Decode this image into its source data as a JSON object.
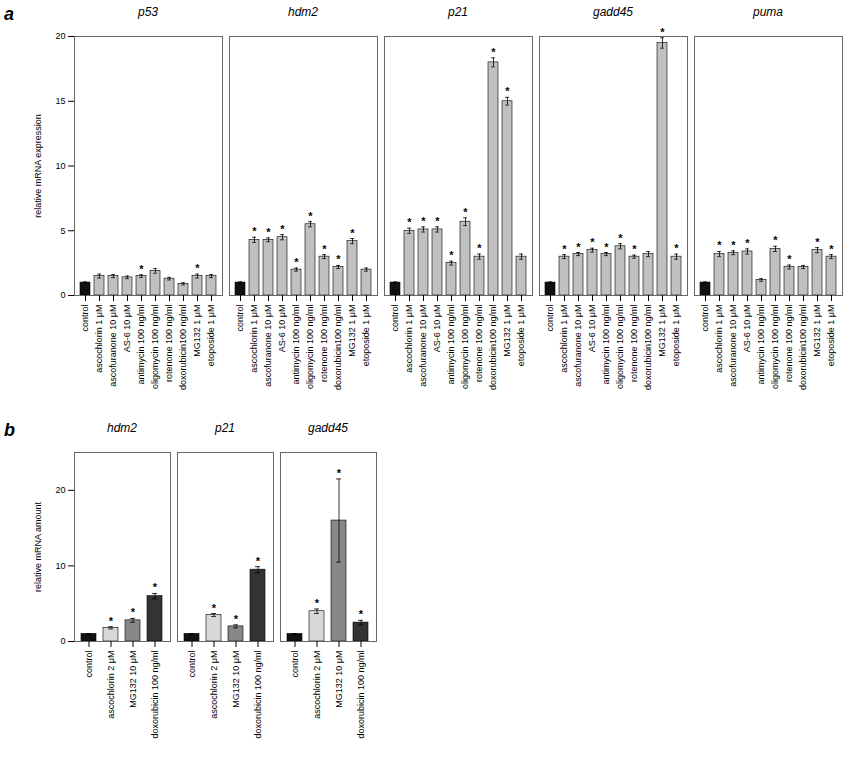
{
  "chart_data": [
    {
      "type": "bar",
      "title": "p53",
      "categories": [
        "control",
        "ascochlorin 1 μM",
        "ascofuranone 10 μM",
        "AS-6 10 μM",
        "antimycin 100 ng/ml",
        "oligomycin 100 ng/ml",
        "rotenone 100 ng/ml",
        "doxorubicin100 ng/ml",
        "MG132 1 μM",
        "etoposide 1 μM"
      ],
      "values": [
        1.0,
        1.5,
        1.5,
        1.4,
        1.5,
        1.9,
        1.3,
        0.9,
        1.5,
        1.5
      ],
      "errors": [
        0.05,
        0.15,
        0.12,
        0.1,
        0.1,
        0.18,
        0.1,
        0.08,
        0.15,
        0.12
      ],
      "significance": [
        null,
        null,
        null,
        null,
        "*",
        null,
        null,
        null,
        "*",
        null
      ],
      "colors": [
        "#111111",
        "#c0c0c0",
        "#c0c0c0",
        "#c0c0c0",
        "#c0c0c0",
        "#c0c0c0",
        "#c0c0c0",
        "#c0c0c0",
        "#c0c0c0",
        "#c0c0c0"
      ],
      "ylim": [
        0,
        20
      ],
      "yticks": [
        0,
        5,
        10,
        15,
        20
      ],
      "ylabel": "relative mRNA expression",
      "annotations": [
        "a"
      ]
    },
    {
      "type": "bar",
      "title": "hdm2",
      "categories": [
        "control",
        "ascochlorin 1 μM",
        "ascofuranone 10 μM",
        "AS-6 10 μM",
        "antimycin 100 ng/ml",
        "oligomycin 100 ng/ml",
        "rotenone 100 ng/ml",
        "doxorubicin100 ng/ml",
        "MG132 1 μM",
        "etoposide 1 μM"
      ],
      "values": [
        1.0,
        4.3,
        4.3,
        4.5,
        2.0,
        5.5,
        3.0,
        2.2,
        4.2,
        2.0
      ],
      "errors": [
        0.05,
        0.2,
        0.15,
        0.2,
        0.12,
        0.2,
        0.15,
        0.12,
        0.2,
        0.12
      ],
      "significance": [
        null,
        "*",
        "*",
        "*",
        "*",
        "*",
        "*",
        "*",
        "*",
        null
      ],
      "colors": [
        "#111111",
        "#c0c0c0",
        "#c0c0c0",
        "#c0c0c0",
        "#c0c0c0",
        "#c0c0c0",
        "#c0c0c0",
        "#c0c0c0",
        "#c0c0c0",
        "#c0c0c0"
      ],
      "ylim": [
        0,
        20
      ],
      "yticks": [
        0,
        5,
        10,
        15,
        20
      ],
      "tick_labels": "x"
    },
    {
      "type": "bar",
      "title": "p21",
      "categories": [
        "control",
        "ascochlorin 1 μM",
        "ascofuranone 10 μM",
        "AS-6 10 μM",
        "antimycin 100 ng/ml",
        "oligomycin 100 ng/ml",
        "rotenone 100 ng/ml",
        "doxorubicin100 ng/ml",
        "MG132 1 μM",
        "etoposide 1 μM"
      ],
      "values": [
        1.0,
        5.0,
        5.1,
        5.1,
        2.5,
        5.7,
        3.0,
        18.0,
        15.0,
        3.0
      ],
      "errors": [
        0.05,
        0.2,
        0.2,
        0.2,
        0.15,
        0.3,
        0.2,
        0.35,
        0.3,
        0.2
      ],
      "significance": [
        null,
        "*",
        "*",
        "*",
        "*",
        "*",
        "*",
        "*",
        "*",
        null
      ],
      "colors": [
        "#111111",
        "#c0c0c0",
        "#c0c0c0",
        "#c0c0c0",
        "#c0c0c0",
        "#c0c0c0",
        "#c0c0c0",
        "#c0c0c0",
        "#c0c0c0",
        "#c0c0c0"
      ],
      "ylim": [
        0,
        20
      ],
      "yticks": [
        0,
        5,
        10,
        15,
        20
      ],
      "tick_labels": "x"
    },
    {
      "type": "bar",
      "title": "gadd45",
      "categories": [
        "control",
        "ascochlorin 1 μM",
        "ascofuranone 10 μM",
        "AS-6 10 μM",
        "antimycin 100 ng/ml",
        "oligomycin 100 ng/ml",
        "rotenone 100 ng/ml",
        "doxorubicin100 ng/ml",
        "MG132 1 μM",
        "etoposide 1 μM"
      ],
      "values": [
        1.0,
        3.0,
        3.2,
        3.5,
        3.2,
        3.8,
        3.0,
        3.2,
        19.5,
        3.0
      ],
      "errors": [
        0.05,
        0.15,
        0.12,
        0.15,
        0.12,
        0.2,
        0.12,
        0.2,
        0.4,
        0.2
      ],
      "significance": [
        null,
        "*",
        "*",
        "*",
        "*",
        "*",
        "*",
        null,
        "*",
        "*"
      ],
      "colors": [
        "#111111",
        "#c0c0c0",
        "#c0c0c0",
        "#c0c0c0",
        "#c0c0c0",
        "#c0c0c0",
        "#c0c0c0",
        "#c0c0c0",
        "#c0c0c0",
        "#c0c0c0"
      ],
      "ylim": [
        0,
        20
      ],
      "yticks": [
        0,
        5,
        10,
        15,
        20
      ],
      "tick_labels": "x"
    },
    {
      "type": "bar",
      "title": "puma",
      "categories": [
        "control",
        "ascochlorin 1 μM",
        "ascofuranone 10 μM",
        "AS-6 10 μM",
        "antimycin 100 ng/ml",
        "oligomycin 100 ng/ml",
        "rotenone 100 ng/ml",
        "doxorubicin100 ng/ml",
        "MG132 1 μM",
        "etoposide 1 μM"
      ],
      "values": [
        1.0,
        3.2,
        3.3,
        3.4,
        1.2,
        3.6,
        2.2,
        2.2,
        3.5,
        3.0
      ],
      "errors": [
        0.05,
        0.2,
        0.15,
        0.2,
        0.1,
        0.2,
        0.15,
        0.12,
        0.2,
        0.15
      ],
      "significance": [
        null,
        "*",
        "*",
        "*",
        null,
        "*",
        "*",
        null,
        "*",
        "*"
      ],
      "colors": [
        "#111111",
        "#c0c0c0",
        "#c0c0c0",
        "#c0c0c0",
        "#c0c0c0",
        "#c0c0c0",
        "#c0c0c0",
        "#c0c0c0",
        "#c0c0c0",
        "#c0c0c0"
      ],
      "ylim": [
        0,
        20
      ],
      "yticks": [
        0,
        5,
        10,
        15,
        20
      ],
      "tick_labels": "x"
    },
    {
      "type": "bar",
      "title": "hdm2",
      "categories": [
        "control",
        "ascochlorin 2 μM",
        "MG132 10 μM",
        "doxorubicin 100 ng/ml"
      ],
      "values": [
        1.0,
        1.8,
        2.8,
        6.0
      ],
      "errors": [
        0.05,
        0.15,
        0.25,
        0.35
      ],
      "significance": [
        null,
        "*",
        "*",
        "*"
      ],
      "colors": [
        "#111111",
        "#d8d8d8",
        "#888888",
        "#333333"
      ],
      "ylim": [
        0,
        25
      ],
      "yticks": [
        0,
        10,
        20
      ],
      "ylabel": "relative mRNA amount",
      "annotations": [
        "b"
      ]
    },
    {
      "type": "bar",
      "title": "p21",
      "categories": [
        "control",
        "ascochlorin 2 μM",
        "MG132 10 μM",
        "doxorubicin 100 ng/ml"
      ],
      "values": [
        1.0,
        3.5,
        2.0,
        9.5
      ],
      "errors": [
        0.05,
        0.2,
        0.2,
        0.4
      ],
      "significance": [
        null,
        "*",
        "*",
        "*"
      ],
      "colors": [
        "#111111",
        "#d8d8d8",
        "#888888",
        "#333333"
      ],
      "ylim": [
        0,
        25
      ],
      "yticks": [
        0,
        10,
        20
      ],
      "tick_labels": "x"
    },
    {
      "type": "bar",
      "title": "gadd45",
      "categories": [
        "control",
        "ascochlorin 2 μM",
        "MG132 10 μM",
        "doxorubicin 100 ng/ml"
      ],
      "values": [
        1.0,
        4.0,
        16.0,
        2.5
      ],
      "errors": [
        0.05,
        0.3,
        5.5,
        0.3
      ],
      "significance": [
        null,
        "*",
        "*",
        "*"
      ],
      "colors": [
        "#111111",
        "#d8d8d8",
        "#888888",
        "#333333"
      ],
      "ylim": [
        0,
        25
      ],
      "yticks": [
        0,
        10,
        20
      ],
      "tick_labels": "x"
    }
  ]
}
